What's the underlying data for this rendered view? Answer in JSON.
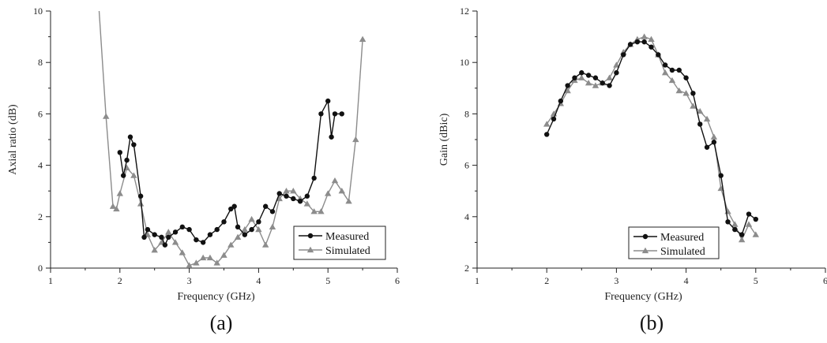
{
  "colors": {
    "measured": "#111111",
    "simulated": "#8c8c8c",
    "axis": "#222222"
  },
  "chart_data": [
    {
      "type": "line",
      "panel_label": "(a)",
      "xlabel": "Frequency (GHz)",
      "ylabel": "Axial ratio (dB)",
      "xlim": [
        1,
        6
      ],
      "ylim": [
        0,
        10
      ],
      "xticks": [
        1,
        2,
        3,
        4,
        5,
        6
      ],
      "yticks": [
        0,
        2,
        4,
        6,
        8,
        10
      ],
      "grid": false,
      "legend_position": "bottom-right",
      "series": [
        {
          "name": "Measured",
          "marker": "circle",
          "color": "#111111",
          "x": [
            2.0,
            2.05,
            2.1,
            2.15,
            2.2,
            2.3,
            2.35,
            2.4,
            2.5,
            2.6,
            2.65,
            2.7,
            2.8,
            2.9,
            3.0,
            3.1,
            3.2,
            3.3,
            3.4,
            3.5,
            3.6,
            3.65,
            3.7,
            3.8,
            3.9,
            4.0,
            4.1,
            4.2,
            4.3,
            4.4,
            4.5,
            4.6,
            4.7,
            4.8,
            4.9,
            5.0,
            5.05,
            5.1,
            5.2
          ],
          "y": [
            4.5,
            3.6,
            4.2,
            5.1,
            4.8,
            2.8,
            1.2,
            1.5,
            1.3,
            1.2,
            0.9,
            1.2,
            1.4,
            1.6,
            1.5,
            1.1,
            1.0,
            1.3,
            1.5,
            1.8,
            2.3,
            2.4,
            1.6,
            1.3,
            1.5,
            1.8,
            2.4,
            2.2,
            2.9,
            2.8,
            2.7,
            2.6,
            2.8,
            3.5,
            6.0,
            6.5,
            5.1,
            6.0,
            6.0
          ]
        },
        {
          "name": "Simulated",
          "marker": "triangle",
          "color": "#8c8c8c",
          "x": [
            1.7,
            1.8,
            1.9,
            1.95,
            2.0,
            2.1,
            2.2,
            2.3,
            2.4,
            2.5,
            2.6,
            2.7,
            2.8,
            2.9,
            3.0,
            3.1,
            3.2,
            3.3,
            3.4,
            3.5,
            3.6,
            3.7,
            3.8,
            3.9,
            4.0,
            4.1,
            4.2,
            4.3,
            4.4,
            4.5,
            4.6,
            4.7,
            4.8,
            4.9,
            5.0,
            5.1,
            5.2,
            5.3,
            5.4,
            5.5
          ],
          "y": [
            10.0,
            5.9,
            2.4,
            2.3,
            2.9,
            3.9,
            3.6,
            2.5,
            1.3,
            0.7,
            1.0,
            1.4,
            1.0,
            0.6,
            0.1,
            0.2,
            0.4,
            0.4,
            0.2,
            0.5,
            0.9,
            1.2,
            1.5,
            1.9,
            1.5,
            0.9,
            1.6,
            2.7,
            3.0,
            3.0,
            2.7,
            2.5,
            2.2,
            2.2,
            2.9,
            3.4,
            3.0,
            2.6,
            5.0,
            8.9
          ]
        }
      ]
    },
    {
      "type": "line",
      "panel_label": "(b)",
      "xlabel": "Frequency (GHz)",
      "ylabel": "Gain (dBic)",
      "xlim": [
        1,
        6
      ],
      "ylim": [
        2,
        12
      ],
      "xticks": [
        1,
        2,
        3,
        4,
        5,
        6
      ],
      "yticks": [
        2,
        4,
        6,
        8,
        10,
        12
      ],
      "grid": false,
      "legend_position": "bottom-right",
      "series": [
        {
          "name": "Measured",
          "marker": "circle",
          "color": "#111111",
          "x": [
            2.0,
            2.1,
            2.2,
            2.3,
            2.4,
            2.5,
            2.6,
            2.7,
            2.8,
            2.9,
            3.0,
            3.1,
            3.2,
            3.3,
            3.4,
            3.5,
            3.6,
            3.7,
            3.8,
            3.9,
            4.0,
            4.1,
            4.2,
            4.3,
            4.4,
            4.5,
            4.6,
            4.7,
            4.8,
            4.9,
            5.0
          ],
          "y": [
            7.2,
            7.8,
            8.5,
            9.1,
            9.4,
            9.6,
            9.5,
            9.4,
            9.2,
            9.1,
            9.6,
            10.3,
            10.7,
            10.8,
            10.8,
            10.6,
            10.3,
            9.9,
            9.7,
            9.7,
            9.4,
            8.8,
            7.6,
            6.7,
            6.9,
            5.6,
            3.8,
            3.5,
            3.3,
            4.1,
            3.9
          ]
        },
        {
          "name": "Simulated",
          "marker": "triangle",
          "color": "#8c8c8c",
          "x": [
            2.0,
            2.1,
            2.2,
            2.3,
            2.4,
            2.5,
            2.6,
            2.7,
            2.8,
            2.9,
            3.0,
            3.1,
            3.2,
            3.3,
            3.4,
            3.5,
            3.6,
            3.7,
            3.8,
            3.9,
            4.0,
            4.1,
            4.2,
            4.3,
            4.4,
            4.5,
            4.6,
            4.7,
            4.8,
            4.9,
            5.0
          ],
          "y": [
            7.6,
            8.0,
            8.4,
            8.9,
            9.3,
            9.4,
            9.2,
            9.1,
            9.2,
            9.4,
            9.9,
            10.4,
            10.7,
            10.9,
            11.0,
            10.9,
            10.3,
            9.6,
            9.3,
            8.9,
            8.8,
            8.3,
            8.1,
            7.8,
            7.1,
            5.1,
            4.2,
            3.7,
            3.1,
            3.7,
            3.3
          ]
        }
      ]
    }
  ]
}
